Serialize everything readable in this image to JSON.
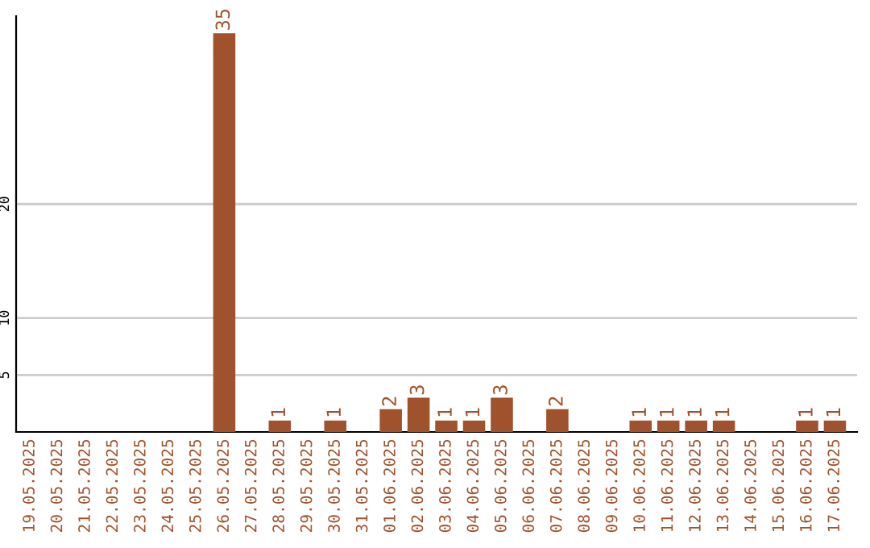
{
  "chart_data": {
    "type": "bar",
    "categories": [
      "19.05.2025",
      "20.05.2025",
      "21.05.2025",
      "22.05.2025",
      "23.05.2025",
      "24.05.2025",
      "25.05.2025",
      "26.05.2025",
      "27.05.2025",
      "28.05.2025",
      "29.05.2025",
      "30.05.2025",
      "31.05.2025",
      "01.06.2025",
      "02.06.2025",
      "03.06.2025",
      "04.06.2025",
      "05.06.2025",
      "06.06.2025",
      "07.06.2025",
      "08.06.2025",
      "09.06.2025",
      "10.06.2025",
      "11.06.2025",
      "12.06.2025",
      "13.06.2025",
      "14.06.2025",
      "15.06.2025",
      "16.06.2025",
      "17.06.2025"
    ],
    "values": [
      0,
      0,
      0,
      0,
      0,
      0,
      0,
      35,
      0,
      1,
      0,
      1,
      0,
      2,
      3,
      1,
      1,
      3,
      0,
      2,
      0,
      0,
      1,
      1,
      1,
      1,
      0,
      0,
      1,
      1
    ],
    "value_labels": [
      null,
      null,
      null,
      null,
      null,
      null,
      null,
      "35",
      null,
      "1",
      null,
      "1",
      null,
      "2",
      "3",
      "1",
      "1",
      "3",
      null,
      "2",
      null,
      null,
      "1",
      "1",
      "1",
      "1",
      null,
      null,
      "1",
      "1"
    ],
    "color": "#a0522d",
    "ylim": [
      0,
      36.5
    ],
    "yticks": [
      5,
      10,
      20
    ],
    "grid": "y"
  }
}
